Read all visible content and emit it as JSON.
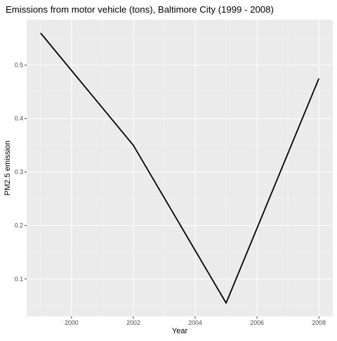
{
  "chart_data": {
    "type": "line",
    "title": "Emissions from motor vehicle (tons), Baltimore City (1999 - 2008)",
    "xlabel": "Year",
    "ylabel": "PM2.5 emission",
    "x": [
      1999,
      2002,
      2005,
      2008
    ],
    "series": [
      {
        "values": [
          0.56,
          0.35,
          0.055,
          0.475
        ]
      }
    ],
    "xlim": [
      1998.55,
      2008.45
    ],
    "ylim": [
      0.03,
      0.585
    ],
    "x_ticks": [
      2000,
      2002,
      2004,
      2006,
      2008
    ],
    "x_tick_labels": [
      "2000",
      "2002",
      "2004",
      "2006",
      "2008"
    ],
    "y_ticks": [
      0.1,
      0.2,
      0.3,
      0.4,
      0.5
    ],
    "y_tick_labels": [
      "0.1",
      "0.2",
      "0.3",
      "0.4",
      "0.5"
    ],
    "grid": true,
    "legend": "none",
    "colors": {
      "panel_background": "#ebebeb",
      "grid_major": "#ffffff",
      "grid_minor": "#f5f5f5",
      "line": "#000000",
      "tick_label": "#4d4d4d",
      "tick_mark": "#333333"
    }
  }
}
